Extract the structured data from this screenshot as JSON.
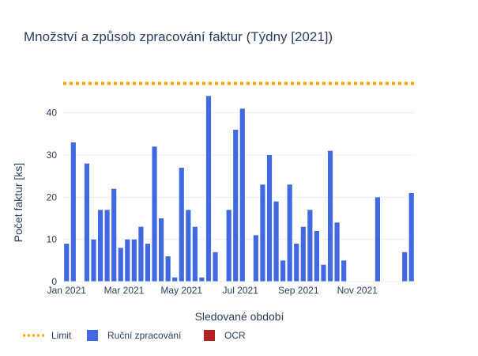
{
  "chart_data": {
    "type": "bar",
    "title": "Množství a způsob zpracování faktur (Týdny [2021])",
    "xlabel": "Sledované období",
    "ylabel": "Počet faktur [ks]",
    "ylim": [
      0,
      48
    ],
    "y_ticks": [
      0,
      10,
      20,
      30,
      40
    ],
    "grid": true,
    "legend_position": "bottom-left",
    "x_ticks": [
      {
        "week": 1,
        "label": "Jan 2021"
      },
      {
        "week": 9.5,
        "label": "Mar 2021"
      },
      {
        "week": 18,
        "label": "May 2021"
      },
      {
        "week": 26.7,
        "label": "Jul 2021"
      },
      {
        "week": 35.3,
        "label": "Sep 2021"
      },
      {
        "week": 44,
        "label": "Nov 2021"
      }
    ],
    "limit": {
      "name": "Limit",
      "value": 47,
      "color": "#FFA500"
    },
    "series": [
      {
        "name": "Ruční zpracování",
        "color": "#4169E1",
        "weeks": [
          1,
          2,
          4,
          5,
          6,
          7,
          8,
          9,
          10,
          11,
          12,
          13,
          14,
          15,
          16,
          17,
          18,
          19,
          20,
          21,
          22,
          23,
          25,
          26,
          27,
          29,
          30,
          31,
          32,
          33,
          34,
          35,
          36,
          37,
          38,
          39,
          40,
          41,
          42,
          43,
          44,
          47,
          51,
          52
        ],
        "values": [
          9,
          33,
          28,
          10,
          17,
          17,
          22,
          8,
          10,
          10,
          13,
          9,
          32,
          15,
          6,
          1,
          27,
          17,
          13,
          1,
          44,
          7,
          17,
          36,
          41,
          11,
          23,
          30,
          19,
          5,
          23,
          9,
          13,
          17,
          12,
          4,
          31,
          14,
          5,
          0,
          0,
          20,
          7,
          21
        ]
      },
      {
        "name": "OCR",
        "color": "#B22222",
        "weeks": [],
        "values": []
      }
    ]
  }
}
